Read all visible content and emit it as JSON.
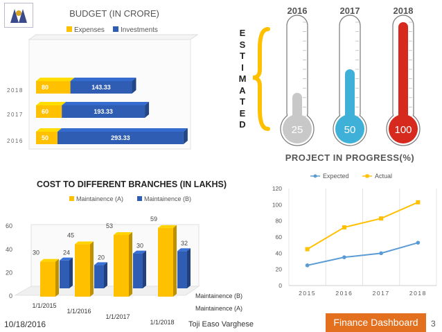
{
  "footer": {
    "date": "10/18/2016",
    "author": "Toji Easo Varghese",
    "tag": "Finance Dashboard",
    "page": "3"
  },
  "logo": {
    "icon": "institution-logo-icon"
  },
  "estimated_label": [
    "E",
    "S",
    "T",
    "I",
    "M",
    "A",
    "T",
    "E",
    "D"
  ],
  "colors": {
    "yellow": "#ffc000",
    "blue": "#2e5db3",
    "orange_footer": "#e2701f",
    "thermo_gray": "#c8c8c8",
    "thermo_cyan": "#3fb0d8",
    "thermo_red": "#d62a1e",
    "line_expected": "#5b9bd5",
    "line_actual": "#ffc000"
  },
  "chart_data": [
    {
      "type": "bar",
      "title": "BUDGET (IN CRORE)",
      "orientation": "horizontal",
      "stacked": true,
      "categories": [
        "2016",
        "2017",
        "2018"
      ],
      "series": [
        {
          "name": "Expenses",
          "values": [
            50,
            60,
            80
          ]
        },
        {
          "name": "Investments",
          "values": [
            293.33,
            193.33,
            143.33
          ]
        }
      ],
      "legend": "top"
    },
    {
      "type": "bar",
      "title": "",
      "style": "thermometer",
      "categories": [
        "2016",
        "2017",
        "2018"
      ],
      "values": [
        25,
        50,
        100
      ],
      "ylim": [
        0,
        100
      ]
    },
    {
      "type": "bar",
      "title": "COST TO DIFFERENT BRANCHES (IN LAKHS)",
      "categories": [
        "1/1/2015",
        "1/1/2016",
        "1/1/2017",
        "1/1/2018"
      ],
      "series": [
        {
          "name": "Maintainence (A)",
          "values": [
            30,
            45,
            53,
            59
          ]
        },
        {
          "name": "Maintainence (B)",
          "values": [
            24,
            20,
            30,
            32
          ]
        }
      ],
      "depth_labels": [
        "Maintainence (B)",
        "Maintainence (A)"
      ],
      "yticks": [
        0,
        20,
        40,
        60
      ],
      "ylim": [
        0,
        60
      ],
      "legend": "top"
    },
    {
      "type": "line",
      "title": "PROJECT IN PROGRESS(%)",
      "x": [
        "2015",
        "2016",
        "2017",
        "2018"
      ],
      "series": [
        {
          "name": "Expected",
          "values": [
            25,
            35,
            40,
            53
          ]
        },
        {
          "name": "Actual",
          "values": [
            45,
            72,
            83,
            103
          ]
        }
      ],
      "yticks": [
        0,
        20,
        40,
        60,
        80,
        100,
        120
      ],
      "ylim": [
        0,
        120
      ],
      "legend": "top",
      "grid": true
    }
  ]
}
